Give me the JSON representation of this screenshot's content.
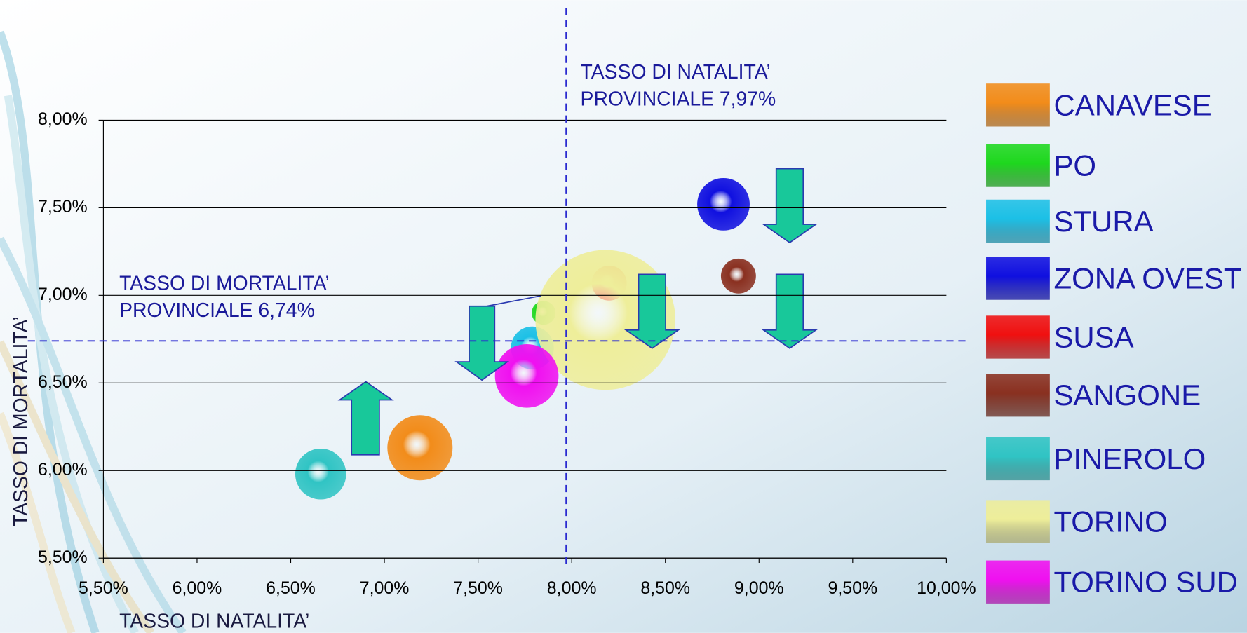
{
  "chart_data": {
    "type": "bubble",
    "xlabel": "TASSO DI NATALITA’",
    "ylabel": "TASSO DI MORTALITA’",
    "xlim": [
      5.5,
      10
    ],
    "ylim": [
      5.5,
      8
    ],
    "xticks": [
      {
        "value": 5.5,
        "label": "5,50%"
      },
      {
        "value": 6,
        "label": "6,00%"
      },
      {
        "value": 6.5,
        "label": "6,50%"
      },
      {
        "value": 7,
        "label": "7,00%"
      },
      {
        "value": 7.5,
        "label": "7,50%"
      },
      {
        "value": 8,
        "label": "8,00%"
      },
      {
        "value": 8.5,
        "label": "8,50%"
      },
      {
        "value": 9,
        "label": "9,00%"
      },
      {
        "value": 9.5,
        "label": "9,50%"
      },
      {
        "value": 10,
        "label": "10,00%"
      }
    ],
    "yticks": [
      {
        "value": 5.5,
        "label": "5,50%"
      },
      {
        "value": 6,
        "label": "6,00%"
      },
      {
        "value": 6.5,
        "label": "6,50%"
      },
      {
        "value": 7,
        "label": "7,00%"
      },
      {
        "value": 7.5,
        "label": "7,50%"
      },
      {
        "value": 8,
        "label": "8,00%"
      }
    ],
    "grid": true,
    "reference_lines": [
      {
        "axis": "x",
        "value": 7.97,
        "text": [
          "TASSO DI NATALITA’",
          "PROVINCIALE 7,97%"
        ]
      },
      {
        "axis": "y",
        "value": 6.74,
        "text": [
          "TASSO DI MORTALITA’",
          "PROVINCIALE 6,74%"
        ]
      }
    ],
    "series": [
      {
        "name": "CANAVESE",
        "color": "#f28c1a",
        "x": 7.19,
        "y": 6.13,
        "size": 41
      },
      {
        "name": "PO",
        "color": "#1ed81e",
        "x": 7.85,
        "y": 6.9,
        "size": 15
      },
      {
        "name": "STURA",
        "color": "#1cc0e6",
        "x": 7.79,
        "y": 6.7,
        "size": 27
      },
      {
        "name": "ZONA OVEST",
        "color": "#1010e0",
        "x": 8.81,
        "y": 7.52,
        "size": 33
      },
      {
        "name": "SUSA",
        "color": "#f01010",
        "x": 8.2,
        "y": 7.07,
        "size": 22
      },
      {
        "name": "SANGONE",
        "color": "#8a3020",
        "x": 8.89,
        "y": 7.11,
        "size": 22
      },
      {
        "name": "PINEROLO",
        "color": "#30c4c4",
        "x": 6.66,
        "y": 5.98,
        "size": 32
      },
      {
        "name": "TORINO",
        "color": "#eeee9a",
        "x": 8.18,
        "y": 6.86,
        "size": 88
      },
      {
        "name": "TORINO SUD",
        "color": "#f010f0",
        "x": 7.76,
        "y": 6.54,
        "size": 40
      }
    ]
  }
}
